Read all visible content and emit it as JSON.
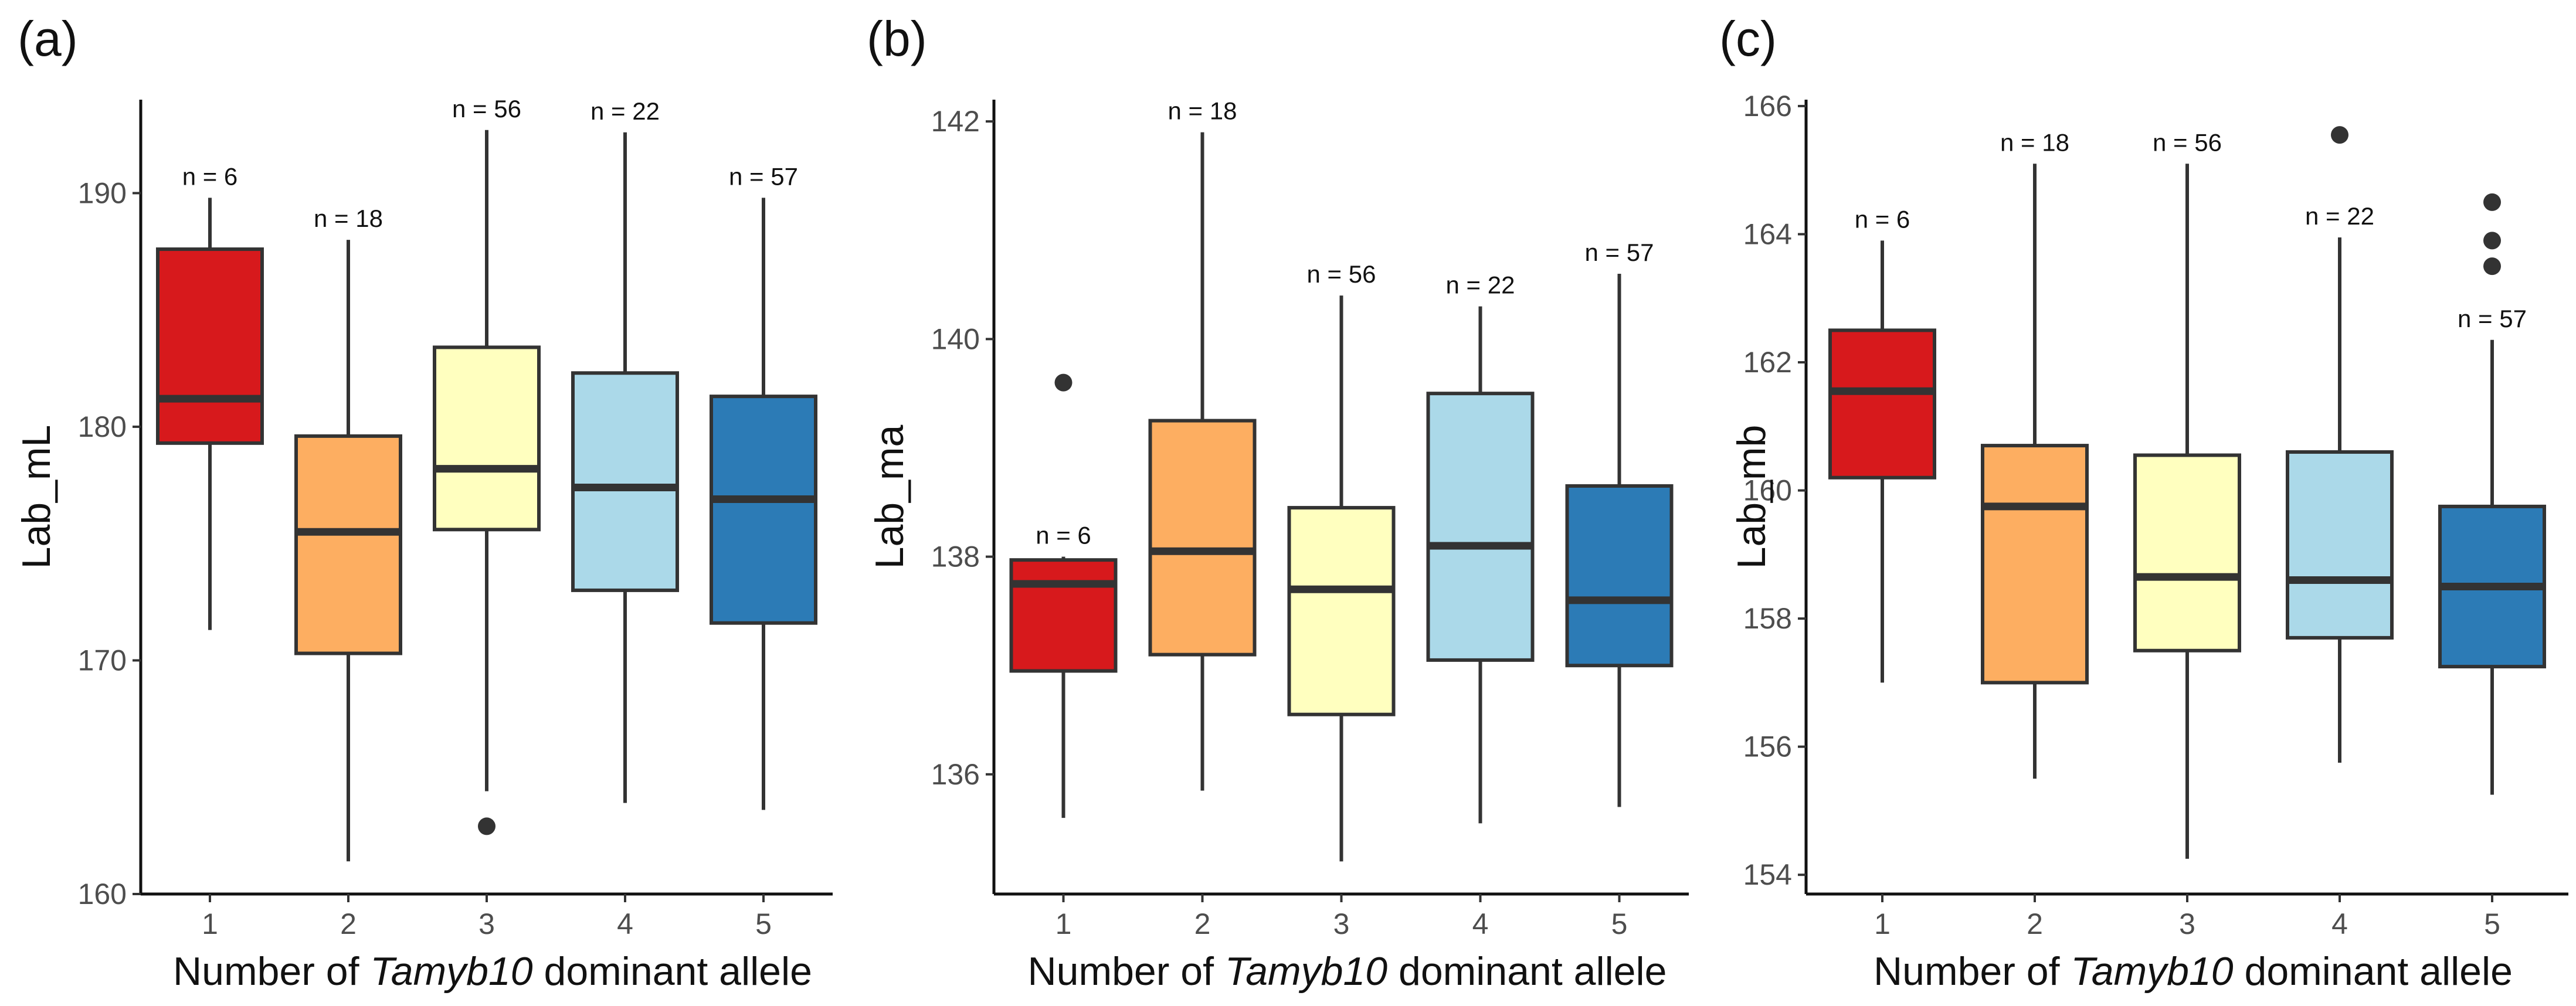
{
  "chart_data": [
    {
      "type": "box",
      "panel": "(a)",
      "xlabel_prefix": "Number of ",
      "xlabel_italic": "Tamyb10",
      "xlabel_suffix": " dominant allele",
      "ylabel": "Lab_mL",
      "ylim": [
        160,
        194
      ],
      "yticks": [
        160,
        170,
        180,
        190
      ],
      "categories": [
        "1",
        "2",
        "3",
        "4",
        "5"
      ],
      "boxes": [
        {
          "category": "1",
          "whisker_low": 171.3,
          "q1": 179.3,
          "median": 181.2,
          "q3": 187.6,
          "whisker_high": 189.8,
          "outliers": [],
          "n_label": "n = 6"
        },
        {
          "category": "2",
          "whisker_low": 161.4,
          "q1": 170.3,
          "median": 175.5,
          "q3": 179.6,
          "whisker_high": 188.0,
          "outliers": [],
          "n_label": "n = 18"
        },
        {
          "category": "3",
          "whisker_low": 164.4,
          "q1": 175.6,
          "median": 178.2,
          "q3": 183.4,
          "whisker_high": 192.7,
          "outliers": [
            162.9
          ],
          "n_label": "n = 56"
        },
        {
          "category": "4",
          "whisker_low": 163.9,
          "q1": 173.0,
          "median": 177.4,
          "q3": 182.3,
          "whisker_high": 192.6,
          "outliers": [],
          "n_label": "n = 22"
        },
        {
          "category": "5",
          "whisker_low": 163.6,
          "q1": 171.6,
          "median": 176.9,
          "q3": 181.3,
          "whisker_high": 189.8,
          "outliers": [],
          "n_label": "n = 57"
        }
      ],
      "colors": [
        "#d7191c",
        "#fdae61",
        "#ffffbf",
        "#abd9e9",
        "#2c7bb6"
      ]
    },
    {
      "type": "box",
      "panel": "(b)",
      "xlabel_prefix": "Number of ",
      "xlabel_italic": "Tamyb10",
      "xlabel_suffix": " dominant allele",
      "ylabel": "Lab_ma",
      "ylim": [
        134.9,
        142.2
      ],
      "yticks": [
        136,
        138,
        140,
        142
      ],
      "categories": [
        "1",
        "2",
        "3",
        "4",
        "5"
      ],
      "boxes": [
        {
          "category": "1",
          "whisker_low": 135.6,
          "q1": 136.95,
          "median": 137.75,
          "q3": 137.97,
          "whisker_high": 138.0,
          "outliers": [
            139.6
          ],
          "n_label": "n = 6"
        },
        {
          "category": "2",
          "whisker_low": 135.85,
          "q1": 137.1,
          "median": 138.05,
          "q3": 139.25,
          "whisker_high": 141.9,
          "outliers": [],
          "n_label": "n = 18"
        },
        {
          "category": "3",
          "whisker_low": 135.2,
          "q1": 136.55,
          "median": 137.7,
          "q3": 138.45,
          "whisker_high": 140.4,
          "outliers": [],
          "n_label": "n = 56"
        },
        {
          "category": "4",
          "whisker_low": 135.55,
          "q1": 137.05,
          "median": 138.1,
          "q3": 139.5,
          "whisker_high": 140.3,
          "outliers": [],
          "n_label": "n = 22"
        },
        {
          "category": "5",
          "whisker_low": 135.7,
          "q1": 137.0,
          "median": 137.6,
          "q3": 138.65,
          "whisker_high": 140.6,
          "outliers": [],
          "n_label": "n = 57"
        }
      ],
      "colors": [
        "#d7191c",
        "#fdae61",
        "#ffffbf",
        "#abd9e9",
        "#2c7bb6"
      ]
    },
    {
      "type": "box",
      "panel": "(c)",
      "xlabel_prefix": "Number of ",
      "xlabel_italic": "Tamyb10",
      "xlabel_suffix": " dominant allele",
      "ylabel": "Lab_mb",
      "ylim": [
        153.7,
        166.1
      ],
      "yticks": [
        154,
        156,
        158,
        160,
        162,
        164,
        166
      ],
      "categories": [
        "1",
        "2",
        "3",
        "4",
        "5"
      ],
      "boxes": [
        {
          "category": "1",
          "whisker_low": 157.0,
          "q1": 160.2,
          "median": 161.55,
          "q3": 162.5,
          "whisker_high": 163.9,
          "outliers": [],
          "n_label": "n = 6"
        },
        {
          "category": "2",
          "whisker_low": 155.5,
          "q1": 157.0,
          "median": 159.75,
          "q3": 160.7,
          "whisker_high": 165.1,
          "outliers": [],
          "n_label": "n = 18"
        },
        {
          "category": "3",
          "whisker_low": 154.25,
          "q1": 157.5,
          "median": 158.65,
          "q3": 160.55,
          "whisker_high": 165.1,
          "outliers": [],
          "n_label": "n = 56"
        },
        {
          "category": "4",
          "whisker_low": 155.75,
          "q1": 157.7,
          "median": 158.6,
          "q3": 160.6,
          "whisker_high": 163.95,
          "outliers": [
            165.55
          ],
          "n_label": "n = 22"
        },
        {
          "category": "5",
          "whisker_low": 155.25,
          "q1": 157.25,
          "median": 158.5,
          "q3": 159.75,
          "whisker_high": 162.35,
          "outliers": [
            164.5,
            163.9,
            163.5
          ],
          "n_label": "n = 57"
        }
      ],
      "colors": [
        "#d7191c",
        "#fdae61",
        "#ffffbf",
        "#abd9e9",
        "#2c7bb6"
      ]
    }
  ]
}
